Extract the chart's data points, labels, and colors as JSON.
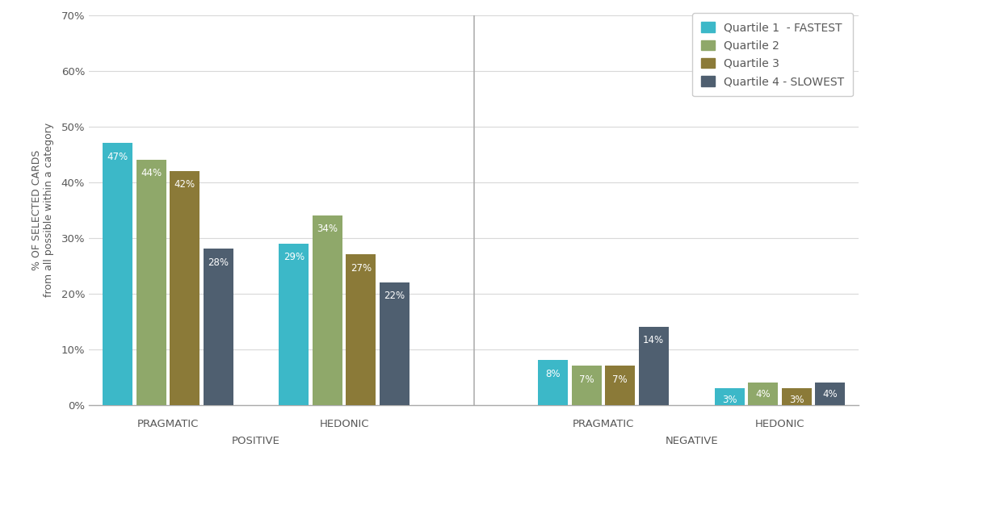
{
  "groups": [
    {
      "label": "PRAGMATIC",
      "category": "POSITIVE",
      "values": [
        47,
        44,
        42,
        28
      ]
    },
    {
      "label": "HEDONIC",
      "category": "POSITIVE",
      "values": [
        29,
        34,
        27,
        22
      ]
    },
    {
      "label": "PRAGMATIC",
      "category": "NEGATIVE",
      "values": [
        8,
        7,
        7,
        14
      ]
    },
    {
      "label": "HEDONIC",
      "category": "NEGATIVE",
      "values": [
        3,
        4,
        3,
        4
      ]
    }
  ],
  "quartile_labels": [
    "Quartile 1  - FASTEST",
    "Quartile 2",
    "Quartile 3",
    "Quartile 4 - SLOWEST"
  ],
  "colors": [
    "#3cb8c8",
    "#8fa86a",
    "#8b7a38",
    "#4f5f70"
  ],
  "ylabel_line1": "% OF SELECTED CARDS",
  "ylabel_line2": "from all possible within a category",
  "ylim": [
    0,
    70
  ],
  "yticks": [
    0,
    10,
    20,
    30,
    40,
    50,
    60,
    70
  ],
  "ytick_labels": [
    "0%",
    "10%",
    "20%",
    "30%",
    "40%",
    "50%",
    "60%",
    "70%"
  ],
  "background_color": "#ffffff",
  "grid_color": "#d8d8d8",
  "text_color": "#595959",
  "bar_label_fontsize": 8.5,
  "legend_fontsize": 10,
  "axis_label_fontsize": 9.5,
  "ylabel_fontsize": 9,
  "divider_color": "#b0b0b0"
}
